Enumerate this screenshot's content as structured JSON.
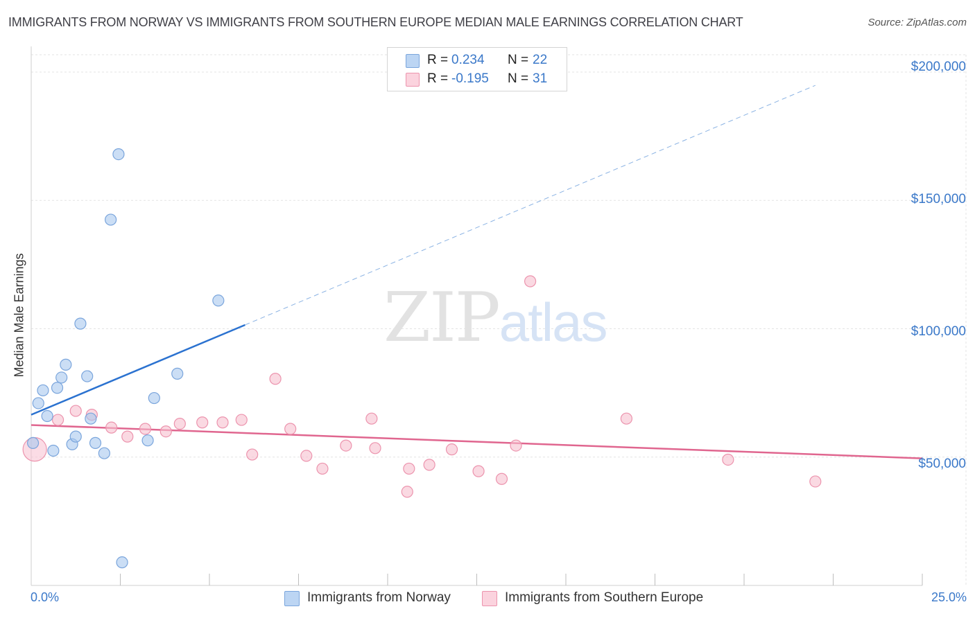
{
  "chart_data": {
    "type": "scatter",
    "title": "IMMIGRANTS FROM NORWAY VS IMMIGRANTS FROM SOUTHERN EUROPE MEDIAN MALE EARNINGS CORRELATION CHART",
    "source": "Source: ZipAtlas.com",
    "xlabel": "",
    "ylabel": "Median Male Earnings",
    "xlim": [
      0,
      25
    ],
    "ylim": [
      0,
      210000
    ],
    "x_tick_labels": [
      {
        "value": 0,
        "label": "0.0%"
      },
      {
        "value": 25,
        "label": "25.0%"
      }
    ],
    "y_ticks": [
      {
        "value": 50000,
        "label": "$50,000"
      },
      {
        "value": 100000,
        "label": "$100,000"
      },
      {
        "value": 150000,
        "label": "$150,000"
      },
      {
        "value": 200000,
        "label": "$200,000"
      }
    ],
    "grid": true,
    "watermark": {
      "zip": "ZIP",
      "atlas": "atlas"
    },
    "legend": [
      {
        "r_label": "R =",
        "r_value": "0.234",
        "n_label": "N =",
        "n_value": "22"
      },
      {
        "r_label": "R =",
        "r_value": "-0.195",
        "n_label": "N =",
        "n_value": "31"
      }
    ],
    "series": [
      {
        "name": "Immigrants from Norway",
        "color": "#a9c8ee",
        "stroke": "#7aa5dc",
        "line_color": "#2b72d0",
        "trend": {
          "x0": 0.0,
          "y0": 66500,
          "x1": 6.0,
          "y1": 101500,
          "x_extend": 22.0
        },
        "points": [
          [
            0.05,
            55500
          ],
          [
            0.2,
            71000
          ],
          [
            0.33,
            76000
          ],
          [
            0.45,
            66000
          ],
          [
            0.62,
            52500
          ],
          [
            0.73,
            77000
          ],
          [
            0.85,
            81000
          ],
          [
            0.97,
            86000
          ],
          [
            1.15,
            55000
          ],
          [
            1.25,
            58000
          ],
          [
            1.38,
            102000
          ],
          [
            1.57,
            81500
          ],
          [
            1.67,
            65000
          ],
          [
            1.8,
            55500
          ],
          [
            2.05,
            51500
          ],
          [
            2.23,
            142500
          ],
          [
            2.45,
            168000
          ],
          [
            2.55,
            9000
          ],
          [
            3.27,
            56500
          ],
          [
            3.45,
            73000
          ],
          [
            4.1,
            82500
          ],
          [
            5.25,
            111000
          ]
        ]
      },
      {
        "name": "Immigrants from Southern Europe",
        "color": "#f7c0cf",
        "stroke": "#ec93ad",
        "line_color": "#e0668f",
        "trend": {
          "x0": 0.0,
          "y0": 62500,
          "x1": 25.0,
          "y1": 49500
        },
        "points": [
          [
            0.1,
            53000
          ],
          [
            0.75,
            64500
          ],
          [
            1.25,
            68000
          ],
          [
            1.7,
            66500
          ],
          [
            2.25,
            61500
          ],
          [
            2.7,
            58000
          ],
          [
            3.2,
            61000
          ],
          [
            3.78,
            60000
          ],
          [
            4.17,
            63000
          ],
          [
            4.8,
            63500
          ],
          [
            5.37,
            63500
          ],
          [
            5.9,
            64500
          ],
          [
            6.2,
            51000
          ],
          [
            6.85,
            80500
          ],
          [
            7.27,
            61000
          ],
          [
            7.72,
            50500
          ],
          [
            8.17,
            45500
          ],
          [
            8.83,
            54500
          ],
          [
            9.55,
            65000
          ],
          [
            9.65,
            53500
          ],
          [
            10.55,
            36500
          ],
          [
            10.6,
            45500
          ],
          [
            11.17,
            47000
          ],
          [
            11.8,
            53000
          ],
          [
            12.55,
            44500
          ],
          [
            13.2,
            41500
          ],
          [
            13.6,
            54500
          ],
          [
            14.0,
            118500
          ],
          [
            16.7,
            65000
          ],
          [
            19.55,
            49000
          ],
          [
            22.0,
            40500
          ]
        ]
      }
    ]
  }
}
